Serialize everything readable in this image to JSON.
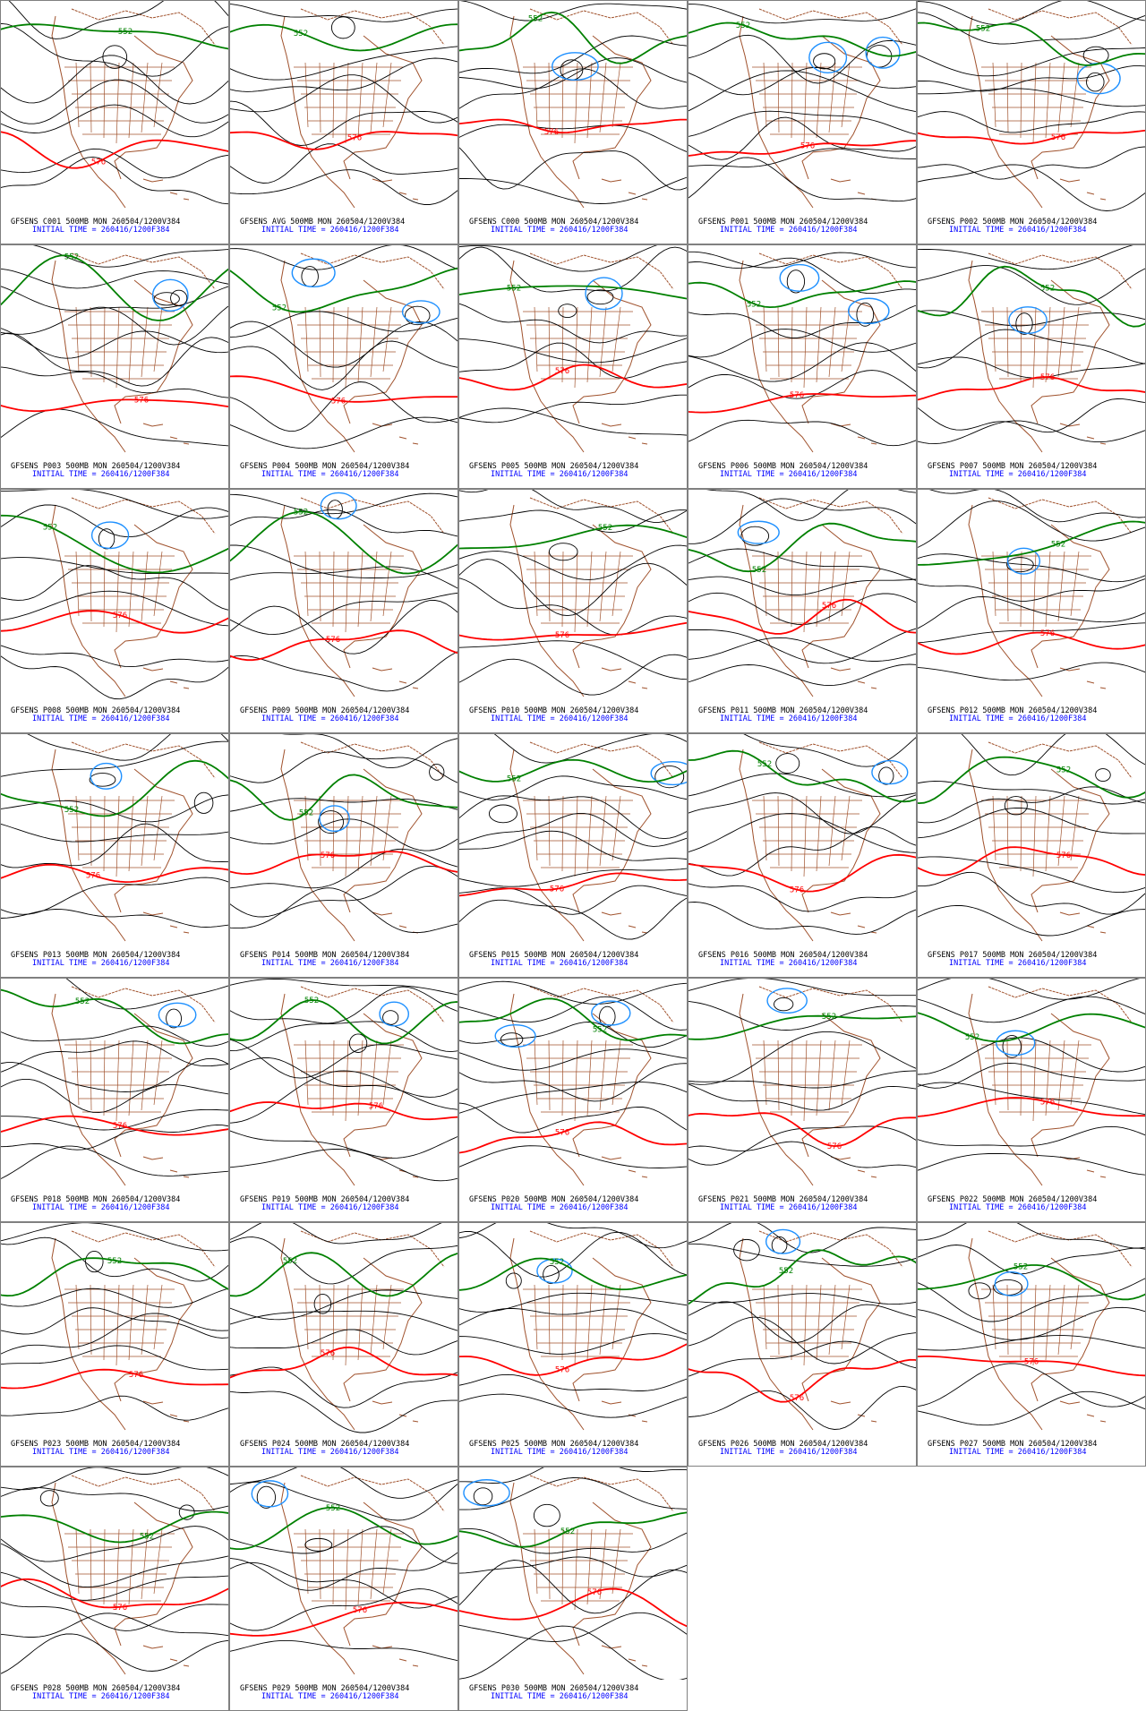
{
  "panels": [
    {
      "caption": "GFSENS C001 500MB MON 260504/1200V384",
      "subcaption": "INITIAL TIME = 260416/1200F384",
      "contour_labels": [
        552,
        576
      ]
    },
    {
      "caption": "GFSENS AVG 500MB MON 260504/1200V384",
      "subcaption": "INITIAL TIME = 260416/1200F384",
      "contour_labels": [
        552,
        576
      ]
    },
    {
      "caption": "GFSENS C000 500MB MON 260504/1200V384",
      "subcaption": "INITIAL TIME = 260416/1200F384",
      "contour_labels": [
        552,
        576
      ]
    },
    {
      "caption": "GFSENS P001 500MB MON 260504/1200V384",
      "subcaption": "INITIAL TIME = 260416/1200F384",
      "contour_labels": [
        552,
        576
      ]
    },
    {
      "caption": "GFSENS P002 500MB MON 260504/1200V384",
      "subcaption": "INITIAL TIME = 260416/1200F384",
      "contour_labels": [
        552,
        576
      ]
    },
    {
      "caption": "GFSENS P003 500MB MON 260504/1200V384",
      "subcaption": "INITIAL TIME = 260416/1200F384",
      "contour_labels": [
        552,
        576
      ]
    },
    {
      "caption": "GFSENS P004 500MB MON 260504/1200V384",
      "subcaption": "INITIAL TIME = 260416/1200F384",
      "contour_labels": [
        552,
        576
      ]
    },
    {
      "caption": "GFSENS P005 500MB MON 260504/1200V384",
      "subcaption": "INITIAL TIME = 260416/1200F384",
      "contour_labels": [
        552,
        576
      ]
    },
    {
      "caption": "GFSENS P006 500MB MON 260504/1200V384",
      "subcaption": "INITIAL TIME = 260416/1200F384",
      "contour_labels": [
        552,
        576
      ]
    },
    {
      "caption": "GFSENS P007 500MB MON 260504/1200V384",
      "subcaption": "INITIAL TIME = 260416/1200F384",
      "contour_labels": [
        552,
        576
      ]
    },
    {
      "caption": "GFSENS P008 500MB MON 260504/1200V384",
      "subcaption": "INITIAL TIME = 260416/1200F384",
      "contour_labels": [
        552,
        576
      ]
    },
    {
      "caption": "GFSENS P009 500MB MON 260504/1200V384",
      "subcaption": "INITIAL TIME = 260416/1200F384",
      "contour_labels": [
        552,
        576
      ]
    },
    {
      "caption": "GFSENS P010 500MB MON 260504/1200V384",
      "subcaption": "INITIAL TIME = 260416/1200F384",
      "contour_labels": [
        552,
        576
      ]
    },
    {
      "caption": "GFSENS P011 500MB MON 260504/1200V384",
      "subcaption": "INITIAL TIME = 260416/1200F384",
      "contour_labels": [
        552,
        576
      ]
    },
    {
      "caption": "GFSENS P012 500MB MON 260504/1200V384",
      "subcaption": "INITIAL TIME = 260416/1200F384",
      "contour_labels": [
        552,
        576
      ]
    },
    {
      "caption": "GFSENS P013 500MB MON 260504/1200V384",
      "subcaption": "INITIAL TIME = 260416/1200F384",
      "contour_labels": [
        552,
        576
      ]
    },
    {
      "caption": "GFSENS P014 500MB MON 260504/1200V384",
      "subcaption": "INITIAL TIME = 260416/1200F384",
      "contour_labels": [
        552,
        576
      ]
    },
    {
      "caption": "GFSENS P015 500MB MON 260504/1200V384",
      "subcaption": "INITIAL TIME = 260416/1200F384",
      "contour_labels": [
        552,
        576
      ]
    },
    {
      "caption": "GFSENS P016 500MB MON 260504/1200V384",
      "subcaption": "INITIAL TIME = 260416/1200F384",
      "contour_labels": [
        552,
        576
      ]
    },
    {
      "caption": "GFSENS P017 500MB MON 260504/1200V384",
      "subcaption": "INITIAL TIME = 260416/1200F384",
      "contour_labels": [
        552,
        576
      ]
    },
    {
      "caption": "GFSENS P018 500MB MON 260504/1200V384",
      "subcaption": "INITIAL TIME = 260416/1200F384",
      "contour_labels": [
        552,
        576
      ]
    },
    {
      "caption": "GFSENS P019 500MB MON 260504/1200V384",
      "subcaption": "INITIAL TIME = 260416/1200F384",
      "contour_labels": [
        552,
        576
      ]
    },
    {
      "caption": "GFSENS P020 500MB MON 260504/1200V384",
      "subcaption": "INITIAL TIME = 260416/1200F384",
      "contour_labels": [
        552,
        576
      ]
    },
    {
      "caption": "GFSENS P021 500MB MON 260504/1200V384",
      "subcaption": "INITIAL TIME = 260416/1200F384",
      "contour_labels": [
        552,
        576
      ]
    },
    {
      "caption": "GFSENS P022 500MB MON 260504/1200V384",
      "subcaption": "INITIAL TIME = 260416/1200F384",
      "contour_labels": [
        552,
        576
      ]
    },
    {
      "caption": "GFSENS P023 500MB MON 260504/1200V384",
      "subcaption": "INITIAL TIME = 260416/1200F384",
      "contour_labels": [
        552,
        576
      ]
    },
    {
      "caption": "GFSENS P024 500MB MON 260504/1200V384",
      "subcaption": "INITIAL TIME = 260416/1200F384",
      "contour_labels": [
        552,
        576
      ]
    },
    {
      "caption": "GFSENS P025 500MB MON 260504/1200V384",
      "subcaption": "INITIAL TIME = 260416/1200F384",
      "contour_labels": [
        552,
        576
      ]
    },
    {
      "caption": "GFSENS P026 500MB MON 260504/1200V384",
      "subcaption": "INITIAL TIME = 260416/1200F384",
      "contour_labels": [
        552,
        576
      ]
    },
    {
      "caption": "GFSENS P027 500MB MON 260504/1200V384",
      "subcaption": "INITIAL TIME = 260416/1200F384",
      "contour_labels": [
        552,
        576
      ]
    },
    {
      "caption": "GFSENS P028 500MB MON 260504/1200V384",
      "subcaption": "INITIAL TIME = 260416/1200F384",
      "contour_labels": [
        552,
        576
      ]
    },
    {
      "caption": "GFSENS P029 500MB MON 260504/1200V384",
      "subcaption": "INITIAL TIME = 260416/1200F384",
      "contour_labels": [
        552,
        576
      ]
    },
    {
      "caption": "GFSENS P030 500MB MON 260504/1200V384",
      "subcaption": "INITIAL TIME = 260416/1200F384",
      "contour_labels": [
        552,
        576
      ]
    }
  ]
}
